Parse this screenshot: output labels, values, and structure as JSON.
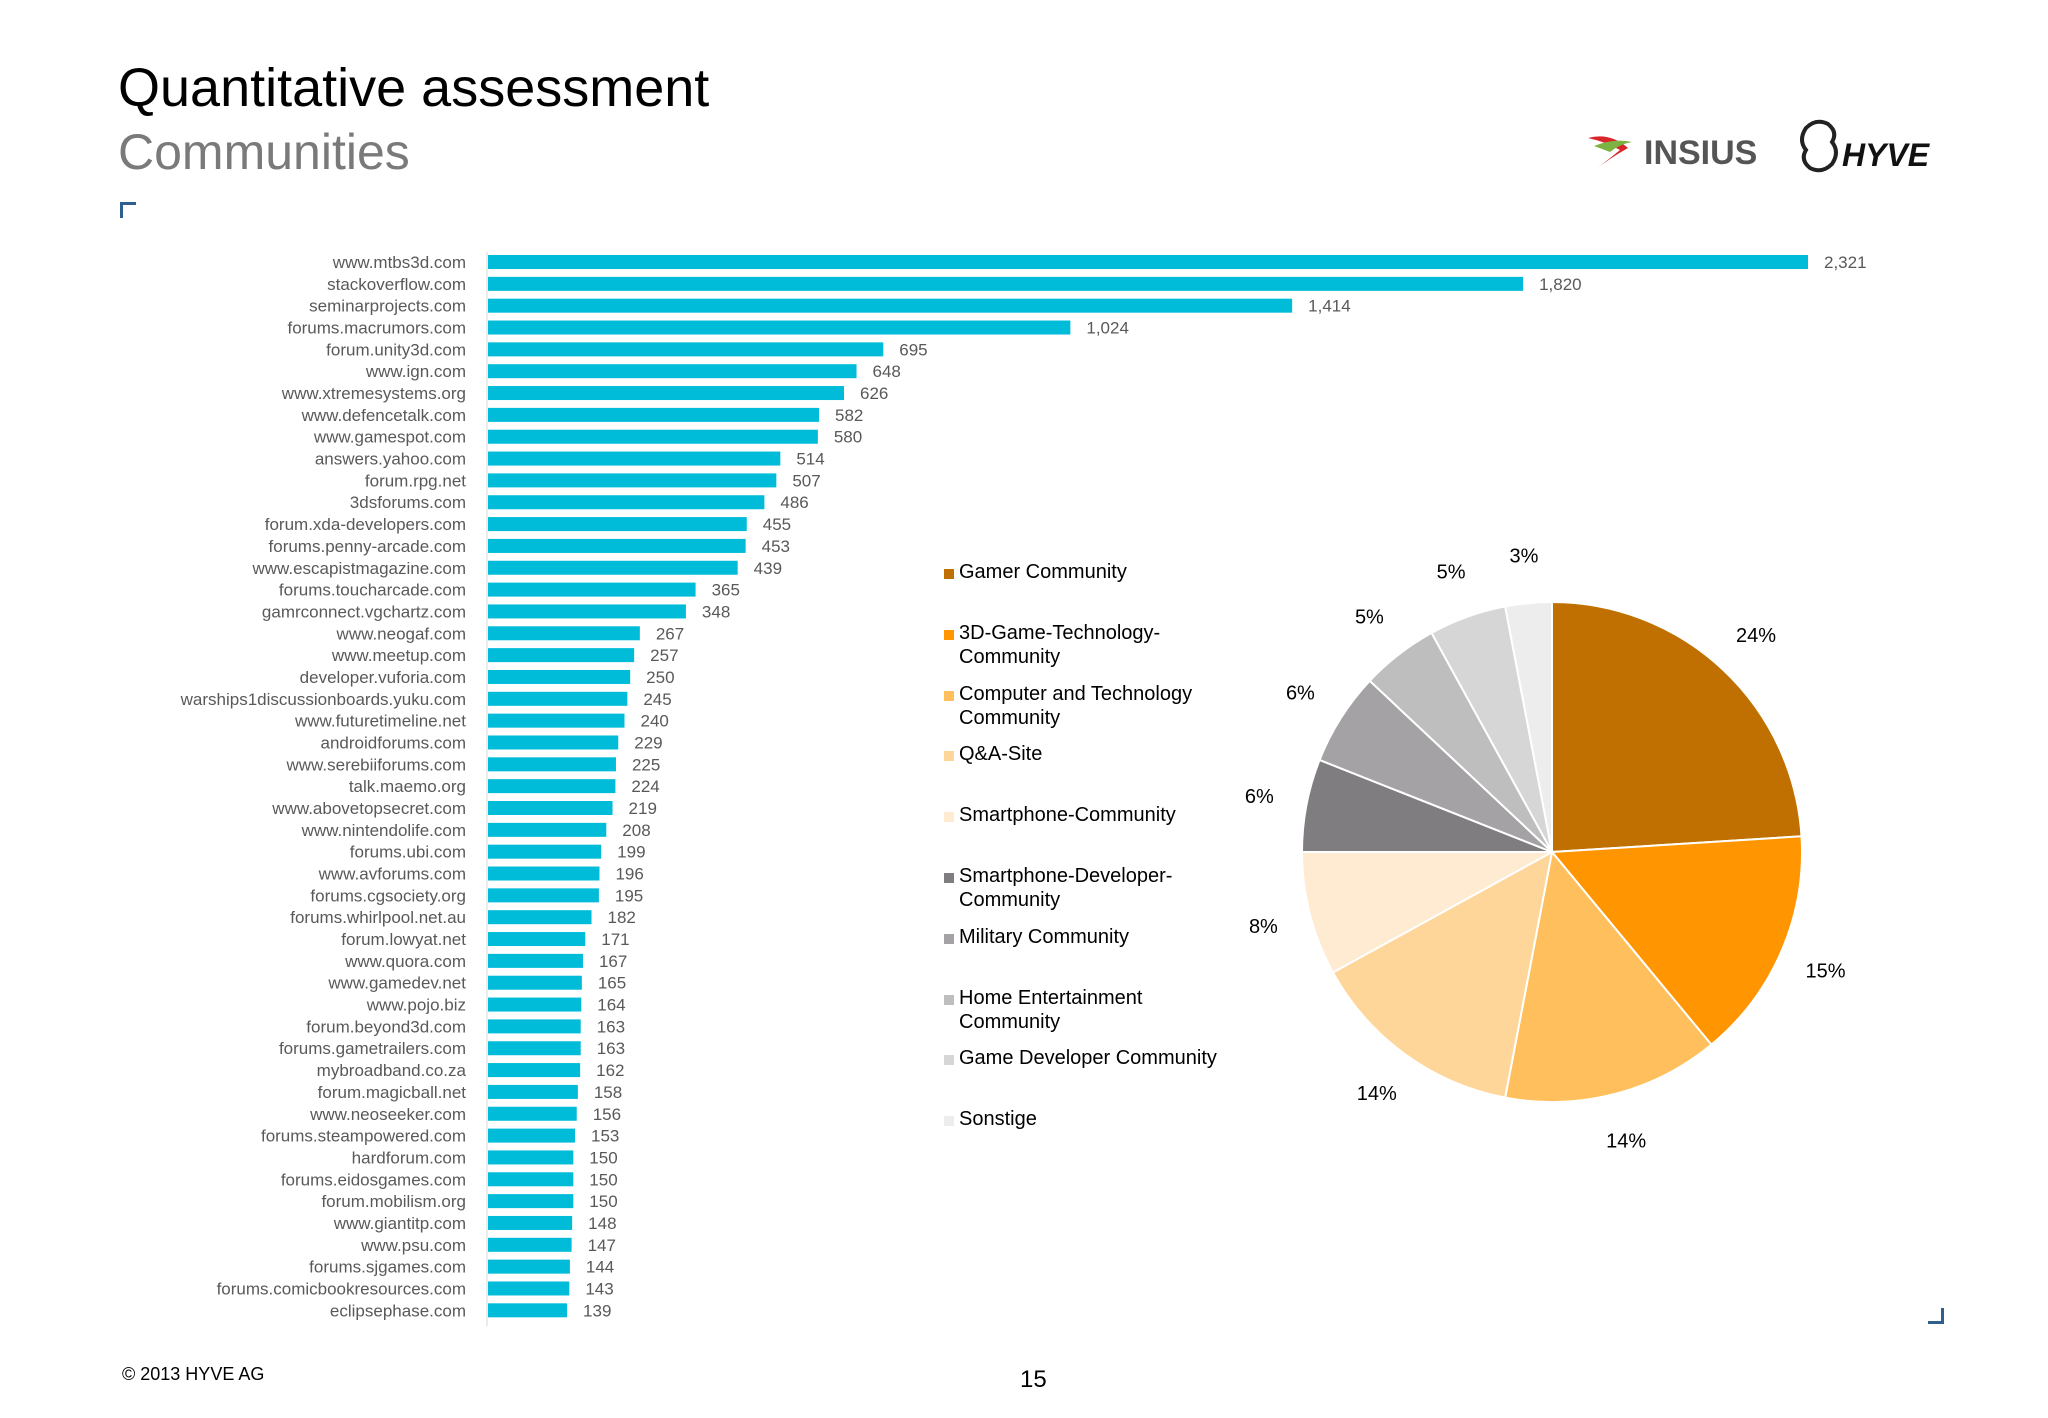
{
  "header": {
    "title": "Quantitative assessment",
    "subtitle": "Communities"
  },
  "logos": {
    "insius": "INSIUS",
    "hyve": "HYVE"
  },
  "footer": {
    "copyright": "© 2013 HYVE AG",
    "page_number": "15"
  },
  "colors": {
    "bar": "#00BCD9",
    "accent_corner": "#2f5f8f"
  },
  "chart_data": [
    {
      "type": "bar",
      "orientation": "horizontal",
      "categories": [
        "www.mtbs3d.com",
        "stackoverflow.com",
        "seminarprojects.com",
        "forums.macrumors.com",
        "forum.unity3d.com",
        "www.ign.com",
        "www.xtremesystems.org",
        "www.defencetalk.com",
        "www.gamespot.com",
        "answers.yahoo.com",
        "forum.rpg.net",
        "3dsforums.com",
        "forum.xda-developers.com",
        "forums.penny-arcade.com",
        "www.escapistmagazine.com",
        "forums.toucharcade.com",
        "gamrconnect.vgchartz.com",
        "www.neogaf.com",
        "www.meetup.com",
        "developer.vuforia.com",
        "warships1discussionboards.yuku.com",
        "www.futuretimeline.net",
        "androidforums.com",
        "www.serebiiforums.com",
        "talk.maemo.org",
        "www.abovetopsecret.com",
        "www.nintendolife.com",
        "forums.ubi.com",
        "www.avforums.com",
        "forums.cgsociety.org",
        "forums.whirlpool.net.au",
        "forum.lowyat.net",
        "www.quora.com",
        "www.gamedev.net",
        "www.pojo.biz",
        "forum.beyond3d.com",
        "forums.gametrailers.com",
        "mybroadband.co.za",
        "forum.magicball.net",
        "www.neoseeker.com",
        "forums.steampowered.com",
        "hardforum.com",
        "forums.eidosgames.com",
        "forum.mobilism.org",
        "www.giantitp.com",
        "www.psu.com",
        "forums.sjgames.com",
        "forums.comicbookresources.com",
        "eclipsephase.com"
      ],
      "values": [
        2321,
        1820,
        1414,
        1024,
        695,
        648,
        626,
        582,
        580,
        514,
        507,
        486,
        455,
        453,
        439,
        365,
        348,
        267,
        257,
        250,
        245,
        240,
        229,
        225,
        224,
        219,
        208,
        199,
        196,
        195,
        182,
        171,
        167,
        165,
        164,
        163,
        163,
        162,
        158,
        156,
        153,
        150,
        150,
        150,
        148,
        147,
        144,
        143,
        139
      ],
      "value_labels": [
        "2,321",
        "1,820",
        "1,414",
        "1,024",
        "695",
        "648",
        "626",
        "582",
        "580",
        "514",
        "507",
        "486",
        "455",
        "453",
        "439",
        "365",
        "348",
        "267",
        "257",
        "250",
        "245",
        "240",
        "229",
        "225",
        "224",
        "219",
        "208",
        "199",
        "196",
        "195",
        "182",
        "171",
        "167",
        "165",
        "164",
        "163",
        "163",
        "162",
        "158",
        "156",
        "153",
        "150",
        "150",
        "150",
        "148",
        "147",
        "144",
        "143",
        "139"
      ],
      "xlim": [
        0,
        2321
      ]
    },
    {
      "type": "pie",
      "slices": [
        {
          "label": "Gamer Community",
          "value": 24,
          "text": "24%",
          "color": "#C07000"
        },
        {
          "label": "3D-Game-Technology-Community",
          "value": 15,
          "text": "15%",
          "color": "#FF9500"
        },
        {
          "label": "Computer and Technology Community",
          "value": 14,
          "text": "14%",
          "color": "#FFBF5C"
        },
        {
          "label": "Q&A-Site",
          "value": 14,
          "text": "14%",
          "color": "#FFD699"
        },
        {
          "label": "Smartphone-Community",
          "value": 8,
          "text": "8%",
          "color": "#FFEBD1"
        },
        {
          "label": "Smartphone-Developer-Community",
          "value": 6,
          "text": "6%",
          "color": "#807D80"
        },
        {
          "label": "Military Community",
          "value": 6,
          "text": "6%",
          "color": "#A4A2A4"
        },
        {
          "label": "Home Entertainment Community",
          "value": 5,
          "text": "5%",
          "color": "#BFBEBF"
        },
        {
          "label": "Game Developer Community",
          "value": 5,
          "text": "5%",
          "color": "#D7D6D7"
        },
        {
          "label": "Sonstige",
          "value": 3,
          "text": "3%",
          "color": "#EEEDEE"
        }
      ],
      "legend": [
        {
          "lines": [
            "Gamer Community"
          ],
          "color": "#C07000"
        },
        {
          "lines": [
            "3D-Game-Technology-",
            "Community"
          ],
          "color": "#FF9500"
        },
        {
          "lines": [
            "Computer and Technology",
            "Community"
          ],
          "color": "#FFBF5C"
        },
        {
          "lines": [
            "Q&A-Site"
          ],
          "color": "#FFD699"
        },
        {
          "lines": [
            "Smartphone-Community"
          ],
          "color": "#FFEBD1"
        },
        {
          "lines": [
            "Smartphone-Developer-",
            "Community"
          ],
          "color": "#807D80"
        },
        {
          "lines": [
            "Military Community"
          ],
          "color": "#A4A2A4"
        },
        {
          "lines": [
            "Home Entertainment",
            "Community"
          ],
          "color": "#BFBEBF"
        },
        {
          "lines": [
            "Game Developer Community"
          ],
          "color": "#D7D6D7"
        },
        {
          "lines": [
            "Sonstige"
          ],
          "color": "#EEEDEE"
        }
      ],
      "legend_position": "left"
    }
  ]
}
